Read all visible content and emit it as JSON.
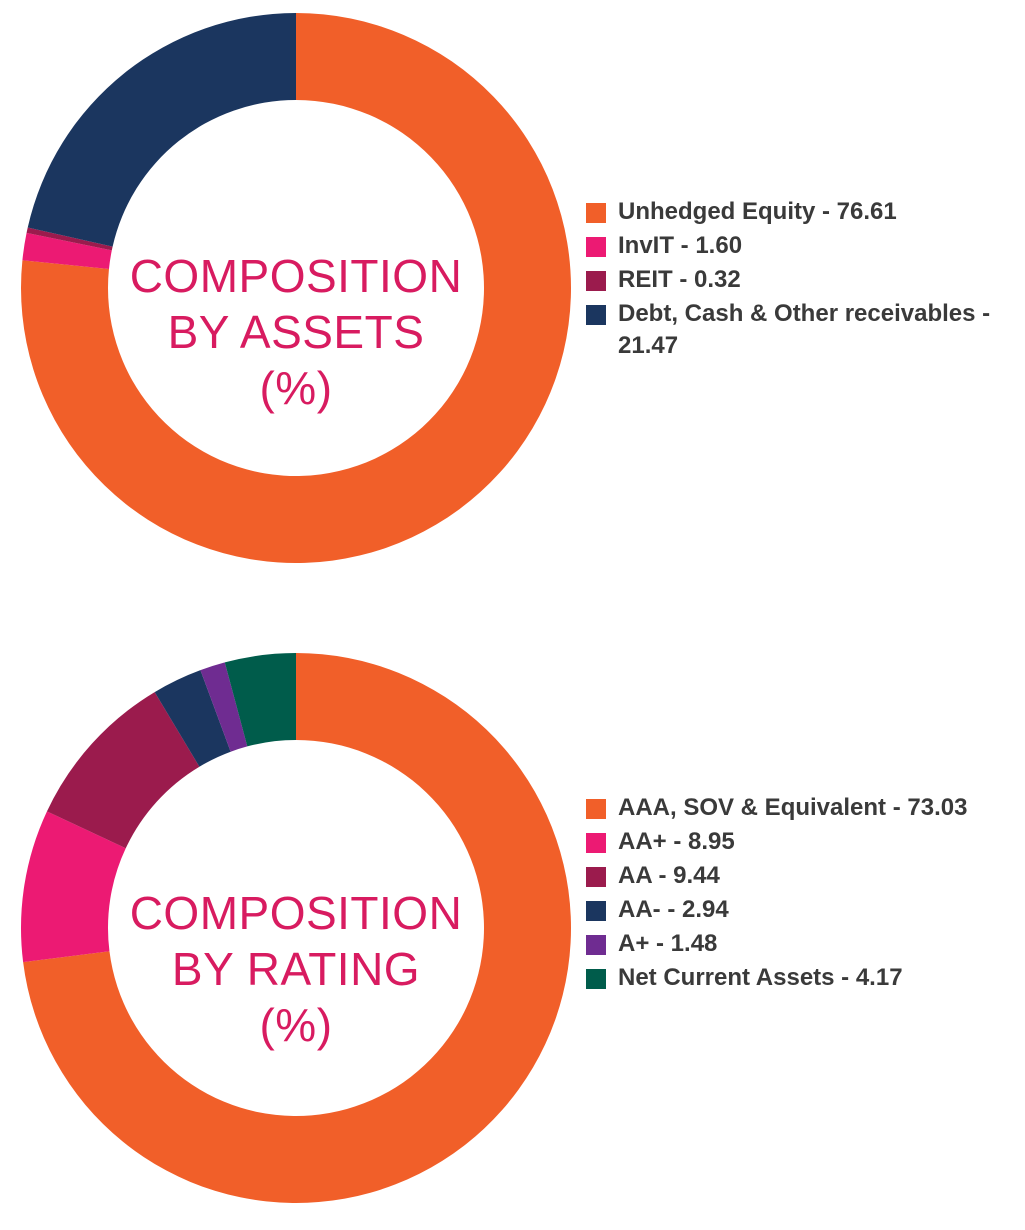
{
  "chart_data": [
    {
      "type": "pie",
      "title": "COMPOSITION BY ASSETS (%)",
      "title_lines": [
        "COMPOSITION",
        "BY ASSETS",
        "(%)"
      ],
      "legend_position": "right",
      "slices": [
        {
          "label": "Unhedged Equity - 76.61",
          "value": 76.61,
          "color": "#f15f29"
        },
        {
          "label": "InvIT - 1.60",
          "value": 1.6,
          "color": "#ec1a73"
        },
        {
          "label": "REIT - 0.32",
          "value": 0.32,
          "color": "#9b1b4d"
        },
        {
          "label": "Debt, Cash & Other receivables - 21.47",
          "value": 21.47,
          "color": "#1b365f"
        }
      ]
    },
    {
      "type": "pie",
      "title": "COMPOSITION BY RATING (%)",
      "title_lines": [
        "COMPOSITION",
        "BY RATING",
        "(%)"
      ],
      "legend_position": "right",
      "slices": [
        {
          "label": "AAA, SOV & Equivalent - 73.03",
          "value": 73.03,
          "color": "#f15f29"
        },
        {
          "label": "AA+ - 8.95",
          "value": 8.95,
          "color": "#ec1a73"
        },
        {
          "label": "AA - 9.44",
          "value": 9.44,
          "color": "#9b1b4d"
        },
        {
          "label": "AA- - 2.94",
          "value": 2.94,
          "color": "#1b365f"
        },
        {
          "label": "A+ - 1.48",
          "value": 1.48,
          "color": "#6f2c91"
        },
        {
          "label": "Net Current Assets - 4.17",
          "value": 4.17,
          "color": "#005c4b"
        }
      ]
    }
  ]
}
